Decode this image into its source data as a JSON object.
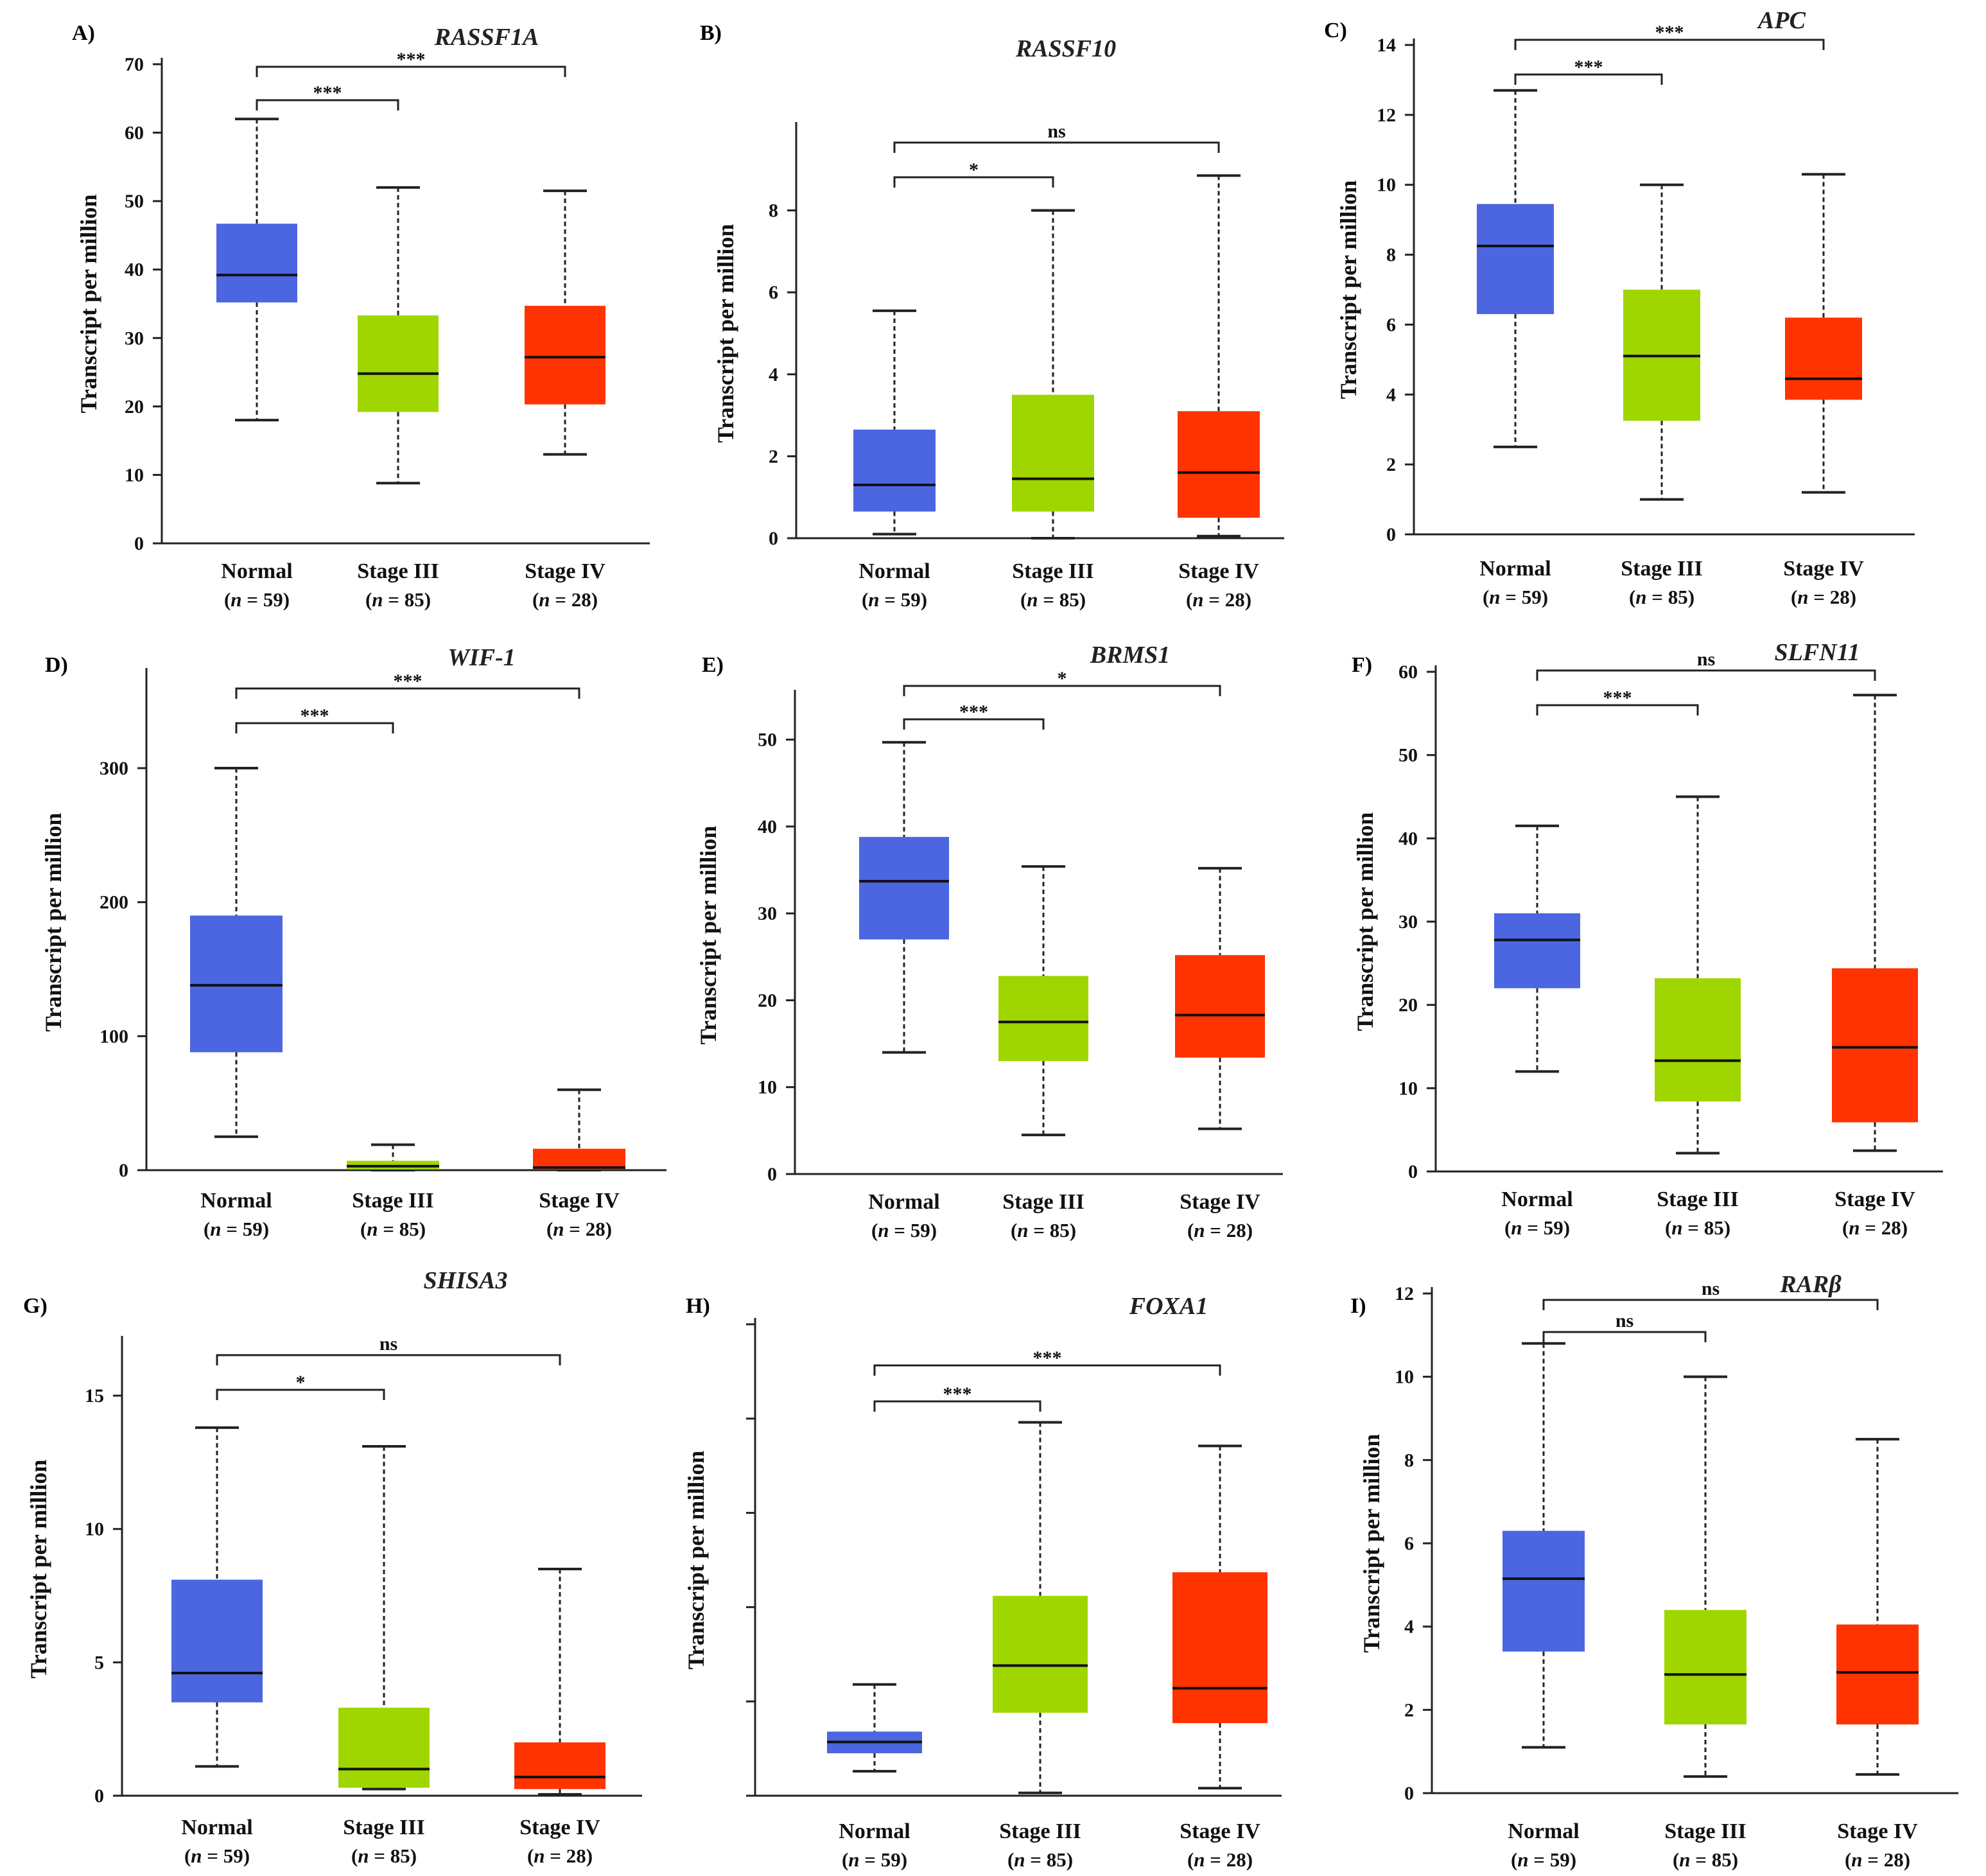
{
  "figure": {
    "ylabel": "Transcript per million",
    "colors": {
      "normal": "#4B66E0",
      "stage3": "#9FD600",
      "stage4": "#FF3300"
    }
  },
  "chart_data": [
    {
      "type": "boxplot",
      "panel": "A)",
      "title": "RASSF1A",
      "ylabel": "Transcript per million",
      "ylim": [
        0,
        70
      ],
      "yticks": [
        0,
        10,
        20,
        30,
        40,
        50,
        60,
        70
      ],
      "ytick_labels": [
        "0",
        "10",
        "20",
        "30",
        "40",
        "50",
        "60",
        "70"
      ],
      "categories": [
        "Normal",
        "Stage III",
        "Stage IV"
      ],
      "n": [
        "59",
        "85",
        "28"
      ],
      "boxes": [
        {
          "min": 18,
          "q1": 35.2,
          "median": 39.2,
          "q3": 46.7,
          "max": 62
        },
        {
          "min": 8.8,
          "q1": 19.2,
          "median": 24.8,
          "q3": 33.3,
          "max": 52
        },
        {
          "min": 13,
          "q1": 20.3,
          "median": 27.2,
          "q3": 34.7,
          "max": 51.5
        }
      ],
      "comparisons": [
        {
          "from": "Normal",
          "to": "Stage III",
          "label": "***"
        },
        {
          "from": "Normal",
          "to": "Stage IV",
          "label": "***"
        }
      ]
    },
    {
      "type": "boxplot",
      "panel": "B)",
      "title": "RASSF10",
      "ylabel": "Transcript per million",
      "ylim": [
        0,
        10
      ],
      "yticks": [
        0,
        2,
        4,
        6,
        8
      ],
      "ytick_labels": [
        "0",
        "2",
        "4",
        "6",
        "8"
      ],
      "categories": [
        "Normal",
        "Stage III",
        "Stage IV"
      ],
      "n": [
        "59",
        "85",
        "28"
      ],
      "boxes": [
        {
          "min": 0.1,
          "q1": 0.65,
          "median": 1.3,
          "q3": 2.65,
          "max": 5.55
        },
        {
          "min": 0,
          "q1": 0.65,
          "median": 1.45,
          "q3": 3.5,
          "max": 8
        },
        {
          "min": 0.05,
          "q1": 0.5,
          "median": 1.6,
          "q3": 3.1,
          "max": 8.85
        }
      ],
      "comparisons": [
        {
          "from": "Normal",
          "to": "Stage III",
          "label": "*"
        },
        {
          "from": "Normal",
          "to": "Stage IV",
          "label": "ns"
        }
      ]
    },
    {
      "type": "boxplot",
      "panel": "C)",
      "title": "APC",
      "ylabel": "Transcript per million",
      "ylim": [
        0,
        14
      ],
      "yticks": [
        0,
        2,
        4,
        6,
        8,
        10,
        12,
        14
      ],
      "ytick_labels": [
        "0",
        "2",
        "4",
        "6",
        "8",
        "10",
        "12",
        "14"
      ],
      "categories": [
        "Normal",
        "Stage III",
        "Stage IV"
      ],
      "n": [
        "59",
        "85",
        "28"
      ],
      "boxes": [
        {
          "min": 2.5,
          "q1": 6.3,
          "median": 8.25,
          "q3": 9.45,
          "max": 12.7
        },
        {
          "min": 1,
          "q1": 3.25,
          "median": 5.1,
          "q3": 7,
          "max": 10
        },
        {
          "min": 1.2,
          "q1": 3.85,
          "median": 4.45,
          "q3": 6.2,
          "max": 10.3
        }
      ],
      "comparisons": [
        {
          "from": "Normal",
          "to": "Stage III",
          "label": "***"
        },
        {
          "from": "Normal",
          "to": "Stage IV",
          "label": "***"
        }
      ]
    },
    {
      "type": "boxplot",
      "panel": "D)",
      "title": "WIF-1",
      "ylabel": "Transcript per million",
      "ylim": [
        0,
        370
      ],
      "yticks": [
        0,
        100,
        200,
        300
      ],
      "ytick_labels": [
        "0",
        "100",
        "200",
        "300"
      ],
      "categories": [
        "Normal",
        "Stage III",
        "Stage IV"
      ],
      "n": [
        "59",
        "85",
        "28"
      ],
      "boxes": [
        {
          "min": 25,
          "q1": 88,
          "median": 138,
          "q3": 190,
          "max": 300
        },
        {
          "min": 0,
          "q1": 0.5,
          "median": 3,
          "q3": 7,
          "max": 19
        },
        {
          "min": 0,
          "q1": 0.5,
          "median": 2,
          "q3": 16,
          "max": 60
        }
      ],
      "comparisons": [
        {
          "from": "Normal",
          "to": "Stage III",
          "label": "***"
        },
        {
          "from": "Normal",
          "to": "Stage IV",
          "label": "***"
        }
      ]
    },
    {
      "type": "boxplot",
      "panel": "E)",
      "title": "BRMS1",
      "ylabel": "Transcript per million",
      "ylim": [
        0,
        55
      ],
      "yticks": [
        0,
        10,
        20,
        30,
        40,
        50
      ],
      "ytick_labels": [
        "0",
        "10",
        "20",
        "30",
        "40",
        "50"
      ],
      "categories": [
        "Normal",
        "Stage III",
        "Stage IV"
      ],
      "n": [
        "59",
        "85",
        "28"
      ],
      "boxes": [
        {
          "min": 14,
          "q1": 27,
          "median": 33.7,
          "q3": 38.8,
          "max": 49.7
        },
        {
          "min": 4.5,
          "q1": 13,
          "median": 17.5,
          "q3": 22.8,
          "max": 35.4
        },
        {
          "min": 5.2,
          "q1": 13.4,
          "median": 18.3,
          "q3": 25.2,
          "max": 35.2
        }
      ],
      "comparisons": [
        {
          "from": "Normal",
          "to": "Stage III",
          "label": "***"
        },
        {
          "from": "Normal",
          "to": "Stage IV",
          "label": "*"
        }
      ]
    },
    {
      "type": "boxplot",
      "panel": "F)",
      "title": "SLFN11",
      "ylabel": "Transcript per million",
      "ylim": [
        0,
        60
      ],
      "yticks": [
        0,
        10,
        20,
        30,
        40,
        50,
        60
      ],
      "ytick_labels": [
        "0",
        "10",
        "20",
        "30",
        "40",
        "50",
        "60"
      ],
      "categories": [
        "Normal",
        "Stage III",
        "Stage IV"
      ],
      "n": [
        "59",
        "85",
        "28"
      ],
      "boxes": [
        {
          "min": 12,
          "q1": 22,
          "median": 27.8,
          "q3": 31,
          "max": 41.5
        },
        {
          "min": 2.2,
          "q1": 8.4,
          "median": 13.3,
          "q3": 23.2,
          "max": 45
        },
        {
          "min": 2.5,
          "q1": 5.9,
          "median": 14.9,
          "q3": 24.4,
          "max": 57.2
        }
      ],
      "comparisons": [
        {
          "from": "Normal",
          "to": "Stage III",
          "label": "***"
        },
        {
          "from": "Normal",
          "to": "Stage IV",
          "label": "ns"
        }
      ]
    },
    {
      "type": "boxplot",
      "panel": "G)",
      "title": "SHISA3",
      "ylabel": "Transcript per million",
      "ylim": [
        0,
        17
      ],
      "yticks": [
        0,
        5,
        10,
        15
      ],
      "ytick_labels": [
        "0",
        "5",
        "10",
        "15"
      ],
      "categories": [
        "Normal",
        "Stage III",
        "Stage IV"
      ],
      "n": [
        "59",
        "85",
        "28"
      ],
      "boxes": [
        {
          "min": 1.1,
          "q1": 3.5,
          "median": 4.6,
          "q3": 8.1,
          "max": 13.8
        },
        {
          "min": 0.25,
          "q1": 0.3,
          "median": 1,
          "q3": 3.3,
          "max": 13.1
        },
        {
          "min": 0.05,
          "q1": 0.25,
          "median": 0.7,
          "q3": 2,
          "max": 8.5
        }
      ],
      "comparisons": [
        {
          "from": "Normal",
          "to": "Stage III",
          "label": "*"
        },
        {
          "from": "Normal",
          "to": "Stage IV",
          "label": "ns"
        }
      ]
    },
    {
      "type": "boxplot",
      "panel": "H)",
      "title": "FOXA1",
      "ylabel": "Transcript per million",
      "ylim": [
        0,
        5
      ],
      "yticks": [
        0,
        1,
        2,
        3,
        4,
        5
      ],
      "ytick_labels": [
        "",
        "",
        "",
        "",
        "",
        ""
      ],
      "categories": [
        "Normal",
        "Stage III",
        "Stage IV"
      ],
      "n": [
        "59",
        "85",
        "28"
      ],
      "boxes": [
        {
          "min": 0.26,
          "q1": 0.45,
          "median": 0.57,
          "q3": 0.68,
          "max": 1.18
        },
        {
          "min": 0.03,
          "q1": 0.88,
          "median": 1.38,
          "q3": 2.12,
          "max": 3.96
        },
        {
          "min": 0.08,
          "q1": 0.77,
          "median": 1.14,
          "q3": 2.37,
          "max": 3.71
        }
      ],
      "comparisons": [
        {
          "from": "Normal",
          "to": "Stage III",
          "label": "***"
        },
        {
          "from": "Normal",
          "to": "Stage IV",
          "label": "***"
        }
      ]
    },
    {
      "type": "boxplot",
      "panel": "I)",
      "title": "RARβ",
      "ylabel": "Transcript per million",
      "ylim": [
        0,
        12
      ],
      "yticks": [
        0,
        2,
        4,
        6,
        8,
        10,
        12
      ],
      "ytick_labels": [
        "0",
        "2",
        "4",
        "6",
        "8",
        "10",
        "12"
      ],
      "categories": [
        "Normal",
        "Stage III",
        "Stage IV"
      ],
      "n": [
        "59",
        "85",
        "28"
      ],
      "boxes": [
        {
          "min": 1.1,
          "q1": 3.4,
          "median": 5.15,
          "q3": 6.3,
          "max": 10.8
        },
        {
          "min": 0.4,
          "q1": 1.65,
          "median": 2.85,
          "q3": 4.4,
          "max": 10
        },
        {
          "min": 0.45,
          "q1": 1.65,
          "median": 2.9,
          "q3": 4.05,
          "max": 8.5
        }
      ],
      "comparisons": [
        {
          "from": "Normal",
          "to": "Stage III",
          "label": "ns"
        },
        {
          "from": "Normal",
          "to": "Stage IV",
          "label": "ns"
        }
      ]
    }
  ]
}
